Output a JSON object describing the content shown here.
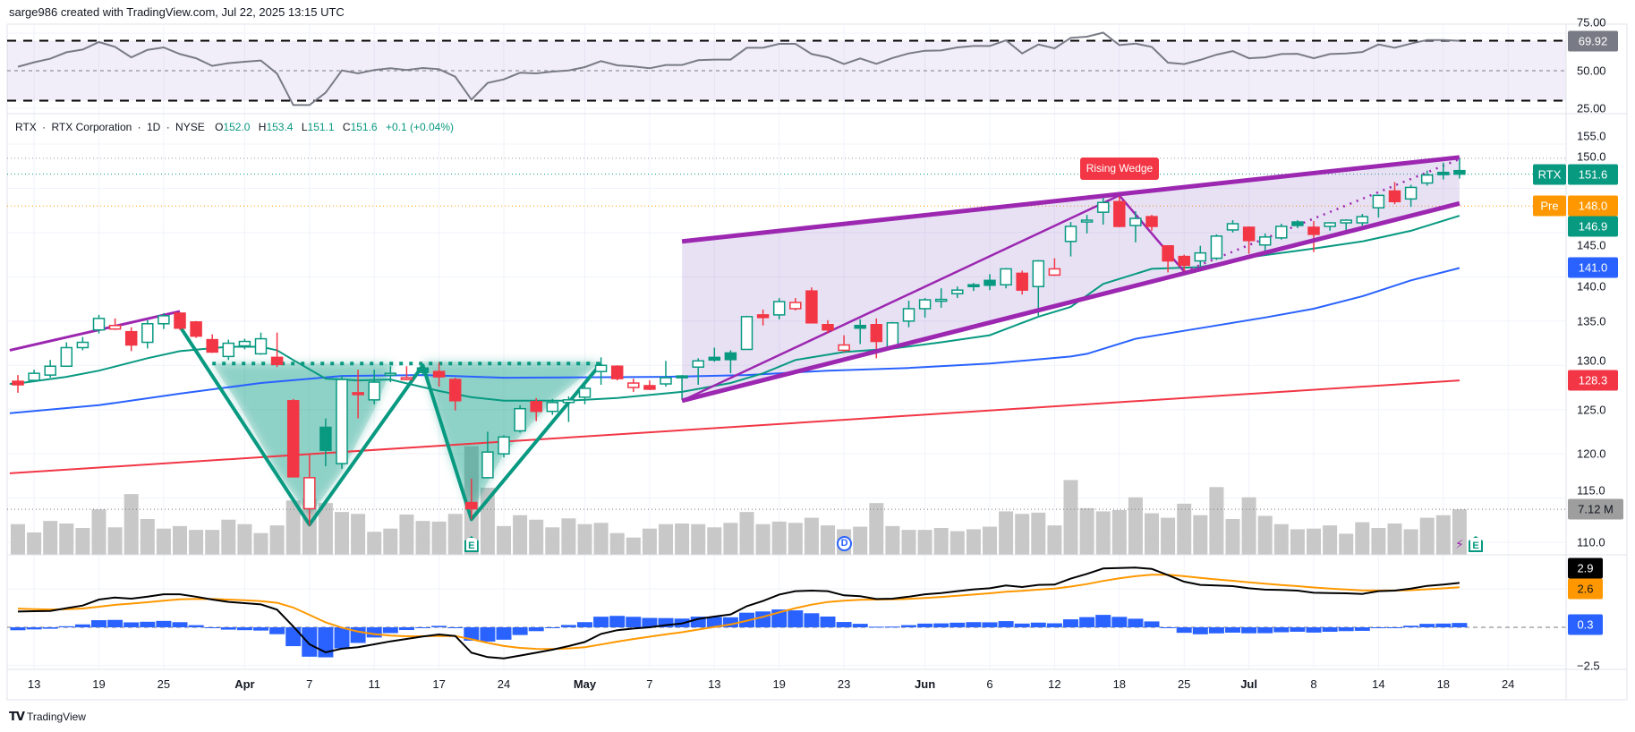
{
  "header": {
    "attribution": "sarge986 created with TradingView.com, Jul 22, 2025 13:15 UTC"
  },
  "legend": {
    "symbol": "RTX",
    "sep": "·",
    "name": "RTX Corporation",
    "interval": "1D",
    "exchange": "NYSE",
    "o_label": "O",
    "o": "152.0",
    "h_label": "H",
    "h": "153.4",
    "l_label": "L",
    "l": "151.1",
    "c_label": "C",
    "c": "151.6",
    "change": "+0.1 (+0.04%)"
  },
  "annotation": {
    "pattern_label": "Rising Wedge"
  },
  "rsi_axis": {
    "ticks": [
      {
        "value": 75,
        "label": "75.00"
      },
      {
        "value": 50,
        "label": "50.00"
      },
      {
        "value": 25,
        "label": "25.00"
      }
    ]
  },
  "price_axis": {
    "ticks": [
      {
        "value": 155,
        "label": "155.0"
      },
      {
        "value": 150,
        "label": "150.0"
      },
      {
        "value": 145,
        "label": "145.0"
      },
      {
        "value": 140,
        "label": "140.0"
      },
      {
        "value": 135,
        "label": "135.0"
      },
      {
        "value": 130,
        "label": "130.0"
      },
      {
        "value": 125,
        "label": "125.0"
      },
      {
        "value": 120,
        "label": "120.0"
      },
      {
        "value": 115,
        "label": "115.0"
      },
      {
        "value": 110,
        "label": "110.0"
      }
    ]
  },
  "macd_axis": {
    "ticks": [
      {
        "value": -2.5,
        "label": "−2.5"
      }
    ]
  },
  "tags": {
    "rsi": {
      "value": "69.92",
      "color": "#787b86"
    },
    "price": {
      "name": "RTX",
      "value": "151.6",
      "color": "#089981"
    },
    "pre": {
      "name": "Pre",
      "value": "148.0",
      "color": "#ff9800"
    },
    "ema": {
      "value": "146.9",
      "color": "#089981"
    },
    "sma50": {
      "value": "141.0",
      "color": "#2962ff"
    },
    "sma200": {
      "value": "128.3",
      "color": "#f23645"
    },
    "volume": {
      "value": "7.12 M",
      "color": "#9e9e9e"
    },
    "macd": {
      "value": "2.9",
      "color": "#000000"
    },
    "signal": {
      "value": "2.6",
      "color": "#ff9800"
    },
    "hist": {
      "value": "0.3",
      "color": "#2962ff"
    }
  },
  "time_axis": {
    "labels": [
      {
        "i": 1,
        "label": "13"
      },
      {
        "i": 5,
        "label": "19"
      },
      {
        "i": 9,
        "label": "25"
      },
      {
        "i": 14,
        "label": "Apr",
        "bold": true
      },
      {
        "i": 18,
        "label": "7"
      },
      {
        "i": 22,
        "label": "11"
      },
      {
        "i": 26,
        "label": "17"
      },
      {
        "i": 30,
        "label": "24"
      },
      {
        "i": 35,
        "label": "May",
        "bold": true
      },
      {
        "i": 39,
        "label": "7"
      },
      {
        "i": 43,
        "label": "13"
      },
      {
        "i": 47,
        "label": "19"
      },
      {
        "i": 51,
        "label": "23"
      },
      {
        "i": 56,
        "label": "Jun",
        "bold": true
      },
      {
        "i": 60,
        "label": "6"
      },
      {
        "i": 64,
        "label": "12"
      },
      {
        "i": 68,
        "label": "18"
      },
      {
        "i": 72,
        "label": "25"
      },
      {
        "i": 76,
        "label": "Jul",
        "bold": true
      },
      {
        "i": 80,
        "label": "8"
      },
      {
        "i": 84,
        "label": "14"
      },
      {
        "i": 88,
        "label": "18"
      },
      {
        "i": 92,
        "label": "24"
      }
    ]
  },
  "events": [
    {
      "i": 28,
      "label": "E",
      "kind": "earnings"
    },
    {
      "i": 51,
      "label": "D",
      "kind": "dividend"
    },
    {
      "i": 89,
      "label": "⚡",
      "kind": "flash"
    },
    {
      "i": 90,
      "label": "E",
      "kind": "earnings"
    }
  ],
  "footer": {
    "brand": "TradingView",
    "logo_mark": "TV"
  },
  "colors": {
    "up": "#089981",
    "down": "#f23645",
    "pattern": "#9c27b0",
    "sma50": "#2962ff",
    "sma200": "#f23645",
    "rsi": "#787b86",
    "macd": "#000000",
    "signal": "#ff9800",
    "hist": "#2962ff",
    "volume": "#c8c8c8"
  },
  "chart_data": {
    "type": "candlestick",
    "symbol": "RTX",
    "interval": "1D",
    "ylim": [
      108,
      157
    ],
    "ohlc": [
      [
        128.2,
        128.9,
        126.9,
        127.8
      ],
      [
        128.3,
        129.5,
        128.1,
        129.1
      ],
      [
        128.9,
        130.6,
        128.6,
        129.9
      ],
      [
        129.9,
        132.6,
        129.9,
        132.0
      ],
      [
        132.0,
        133.2,
        131.7,
        132.6
      ],
      [
        134.0,
        135.7,
        133.6,
        135.3
      ],
      [
        134.1,
        135.3,
        134.0,
        134.5
      ],
      [
        133.8,
        134.3,
        131.6,
        132.3
      ],
      [
        132.6,
        135.1,
        131.9,
        134.7
      ],
      [
        134.7,
        135.9,
        134.1,
        135.6
      ],
      [
        135.9,
        135.9,
        134.0,
        134.2
      ],
      [
        134.9,
        135.0,
        133.1,
        133.3
      ],
      [
        132.9,
        133.5,
        131.4,
        131.5
      ],
      [
        131.0,
        132.9,
        130.6,
        132.5
      ],
      [
        132.2,
        133.0,
        131.8,
        132.7
      ],
      [
        131.3,
        133.7,
        131.2,
        133.0
      ],
      [
        130.9,
        133.7,
        129.8,
        130.1
      ],
      [
        126.0,
        126.2,
        117.4,
        117.4
      ],
      [
        113.8,
        119.9,
        111.9,
        117.3
      ],
      [
        123.0,
        124.0,
        118.6,
        120.4
      ],
      [
        118.9,
        128.8,
        118.3,
        128.4
      ],
      [
        126.9,
        129.5,
        124.0,
        126.8
      ],
      [
        126.1,
        129.5,
        125.6,
        128.1
      ],
      [
        129.0,
        129.9,
        128.1,
        129.1
      ],
      [
        128.4,
        129.9,
        128.3,
        128.6
      ],
      [
        129.7,
        130.0,
        128.9,
        129.2
      ],
      [
        129.3,
        130.3,
        127.6,
        128.7
      ],
      [
        128.4,
        128.6,
        124.9,
        126.0
      ],
      [
        114.5,
        117.2,
        112.6,
        113.8
      ],
      [
        117.3,
        122.5,
        117.3,
        120.2
      ],
      [
        120.0,
        122.1,
        119.6,
        121.9
      ],
      [
        122.6,
        125.5,
        122.4,
        125.1
      ],
      [
        125.9,
        126.3,
        123.7,
        124.8
      ],
      [
        124.8,
        126.2,
        124.4,
        125.8
      ],
      [
        125.8,
        126.5,
        123.6,
        126.1
      ],
      [
        126.4,
        128.0,
        125.6,
        127.4
      ],
      [
        129.3,
        130.9,
        127.8,
        130.0
      ],
      [
        129.9,
        130.0,
        128.3,
        128.5
      ],
      [
        127.5,
        128.5,
        127.0,
        128.0
      ],
      [
        127.7,
        128.3,
        127.2,
        127.3
      ],
      [
        127.9,
        130.5,
        127.6,
        128.6
      ],
      [
        128.8,
        128.9,
        126.1,
        128.65
      ],
      [
        129.8,
        130.8,
        127.8,
        130.5
      ],
      [
        130.9,
        132.0,
        130.4,
        130.6
      ],
      [
        131.4,
        131.7,
        129.1,
        130.65
      ],
      [
        131.8,
        135.6,
        131.8,
        135.5
      ],
      [
        135.7,
        136.3,
        134.5,
        135.4
      ],
      [
        135.7,
        137.6,
        135.2,
        137.2
      ],
      [
        136.4,
        137.6,
        136.2,
        137.1
      ],
      [
        138.4,
        138.8,
        134.8,
        134.8
      ],
      [
        134.6,
        135.1,
        133.6,
        134.0
      ],
      [
        131.7,
        133.4,
        131.5,
        132.3
      ],
      [
        134.5,
        135.2,
        132.4,
        134.2
      ],
      [
        134.6,
        135.3,
        130.8,
        132.7
      ],
      [
        132.1,
        134.9,
        132.0,
        134.8
      ],
      [
        135.0,
        137.3,
        134.3,
        136.4
      ],
      [
        136.4,
        137.6,
        135.4,
        137.4
      ],
      [
        137.3,
        138.7,
        136.5,
        137.45
      ],
      [
        138.1,
        138.9,
        137.6,
        138.5
      ],
      [
        139.1,
        139.3,
        138.4,
        139.0
      ],
      [
        139.6,
        140.3,
        138.5,
        139.05
      ],
      [
        139.1,
        141.0,
        138.7,
        140.9
      ],
      [
        140.4,
        140.7,
        138.0,
        138.5
      ],
      [
        138.9,
        141.9,
        135.6,
        141.8
      ],
      [
        140.2,
        142.1,
        140.1,
        140.9
      ],
      [
        144.0,
        146.2,
        142.3,
        145.7
      ],
      [
        146.3,
        147.0,
        144.9,
        146.4
      ],
      [
        147.3,
        149.0,
        145.9,
        148.4
      ],
      [
        148.5,
        149.2,
        145.6,
        145.7
      ],
      [
        145.8,
        147.4,
        143.9,
        146.6
      ],
      [
        146.8,
        147.0,
        145.2,
        145.7
      ],
      [
        143.5,
        143.5,
        140.5,
        141.8
      ],
      [
        142.3,
        142.5,
        140.6,
        141.3
      ],
      [
        141.8,
        143.5,
        141.2,
        142.7
      ],
      [
        142.1,
        144.8,
        141.9,
        144.6
      ],
      [
        145.3,
        146.4,
        145.0,
        146.0
      ],
      [
        145.6,
        145.7,
        142.6,
        144.1
      ],
      [
        143.6,
        144.9,
        142.9,
        144.5
      ],
      [
        144.4,
        146.0,
        144.2,
        145.7
      ],
      [
        146.2,
        146.4,
        145.5,
        145.8
      ],
      [
        145.6,
        146.3,
        142.8,
        144.8
      ],
      [
        145.7,
        146.2,
        145.2,
        146.1
      ],
      [
        146.1,
        146.5,
        144.8,
        146.4
      ],
      [
        146.1,
        147.1,
        145.8,
        146.8
      ],
      [
        147.8,
        149.3,
        146.7,
        149.2
      ],
      [
        149.7,
        150.7,
        148.2,
        148.5
      ],
      [
        148.8,
        150.4,
        147.9,
        150.1
      ],
      [
        150.6,
        152.0,
        150.3,
        151.5
      ],
      [
        151.8,
        152.9,
        151.0,
        151.55
      ],
      [
        152.0,
        153.4,
        151.1,
        151.6
      ]
    ],
    "volume_millions": [
      4.8,
      3.5,
      5.3,
      4.9,
      4.2,
      7.1,
      4.3,
      9.5,
      5.6,
      4.1,
      4.5,
      3.9,
      3.9,
      5.5,
      4.8,
      3.4,
      4.6,
      8.5,
      8.8,
      8.1,
      6.7,
      6.4,
      3.6,
      4.1,
      6.3,
      5.3,
      5.2,
      6.4,
      17.0,
      10.5,
      4.5,
      6.2,
      5.5,
      4.3,
      5.7,
      4.8,
      5.0,
      3.4,
      2.7,
      4.1,
      4.8,
      4.9,
      4.8,
      4.3,
      5.0,
      6.7,
      4.8,
      5.2,
      5.0,
      5.8,
      4.6,
      4.0,
      4.4,
      8.1,
      4.5,
      3.9,
      3.9,
      4.2,
      3.7,
      4.0,
      4.4,
      6.8,
      6.4,
      6.6,
      4.6,
      11.7,
      7.3,
      6.8,
      7.0,
      9.0,
      6.5,
      5.8,
      8.0,
      6.2,
      10.6,
      5.6,
      9.0,
      6.1,
      4.8,
      4.0,
      4.1,
      4.6,
      3.3,
      5.1,
      4.2,
      4.9,
      4.0,
      5.8,
      6.2,
      7.12
    ],
    "price_lines": {
      "high": 153.4,
      "last": 151.6,
      "pre": 148.0,
      "volume_ref": 7.12
    },
    "ema20": [
      [
        -0.5,
        127.9
      ],
      [
        0,
        127.95
      ],
      [
        3,
        128.7
      ],
      [
        5,
        129.4
      ],
      [
        8,
        130.8
      ],
      [
        10,
        131.6
      ],
      [
        13,
        132.1
      ],
      [
        15,
        132.1
      ],
      [
        16,
        131.7
      ],
      [
        17,
        130.6
      ],
      [
        19,
        128.5
      ],
      [
        21,
        128.3
      ],
      [
        23,
        128.4
      ],
      [
        26,
        127.1
      ],
      [
        28,
        126.4
      ],
      [
        30,
        126.0
      ],
      [
        34,
        126.0
      ],
      [
        37,
        126.3
      ],
      [
        41,
        127.0
      ],
      [
        44,
        128.0
      ],
      [
        46,
        129.1
      ],
      [
        48,
        130.6
      ],
      [
        51,
        131.5
      ],
      [
        54,
        131.9
      ],
      [
        57,
        132.6
      ],
      [
        60,
        133.4
      ],
      [
        63,
        135.5
      ],
      [
        65,
        136.6
      ],
      [
        67,
        139.2
      ],
      [
        70,
        140.9
      ],
      [
        73,
        141.1
      ],
      [
        76,
        142.2
      ],
      [
        80,
        143.2
      ],
      [
        83,
        144.0
      ],
      [
        86,
        145.2
      ],
      [
        89,
        146.9
      ]
    ],
    "sma50": [
      [
        -0.5,
        124.6
      ],
      [
        5,
        125.5
      ],
      [
        10,
        126.8
      ],
      [
        15,
        128.0
      ],
      [
        20,
        128.8
      ],
      [
        25,
        128.9
      ],
      [
        30,
        128.6
      ],
      [
        40,
        128.7
      ],
      [
        45,
        128.9
      ],
      [
        50,
        129.4
      ],
      [
        55,
        129.7
      ],
      [
        60,
        130.2
      ],
      [
        65,
        131.0
      ],
      [
        66,
        131.3
      ],
      [
        69,
        133.0
      ],
      [
        73,
        134.2
      ],
      [
        77,
        135.4
      ],
      [
        80,
        136.4
      ],
      [
        83,
        137.8
      ],
      [
        86,
        139.6
      ],
      [
        89,
        141.0
      ]
    ],
    "sma200": [
      [
        -0.5,
        117.8
      ],
      [
        89,
        128.3
      ]
    ],
    "rsi": [
      52.6,
      55.6,
      58,
      62.3,
      64.1,
      69.1,
      65.9,
      58.9,
      63.9,
      65.5,
      61.1,
      58.3,
      53.2,
      55,
      56,
      56.8,
      48,
      27.1,
      27.1,
      35.3,
      50.2,
      48.2,
      50.4,
      51.6,
      50.4,
      51.8,
      51,
      46,
      30.7,
      41.8,
      44.2,
      48.6,
      48.2,
      49.4,
      50.2,
      52.4,
      56.4,
      53.6,
      52.8,
      51.6,
      53.8,
      53.8,
      57,
      57.4,
      57.4,
      65.3,
      65.3,
      67.9,
      67.9,
      61.1,
      58.9,
      54.4,
      58.2,
      54.6,
      58.5,
      61.5,
      63.3,
      63.5,
      65.5,
      66.5,
      66.5,
      70.3,
      61.5,
      67.5,
      64.9,
      71.9,
      72.7,
      75.4,
      67.1,
      68.1,
      65.9,
      55.4,
      54.4,
      57.2,
      60.7,
      63.1,
      58.3,
      58.9,
      61.1,
      61.3,
      58.3,
      61.1,
      61.5,
      62.5,
      67.5,
      65.3,
      68.1,
      70.5,
      70.5,
      69.92
    ],
    "rsi_bands": {
      "upper": 70,
      "middle": 50,
      "lower": 30
    },
    "macd": [
      1.03,
      1.05,
      1.07,
      1.25,
      1.42,
      1.81,
      1.95,
      1.87,
      2.0,
      2.16,
      2.16,
      2.0,
      1.81,
      1.66,
      1.58,
      1.5,
      1.15,
      0.06,
      -1.11,
      -1.64,
      -1.4,
      -1.3,
      -1.11,
      -0.92,
      -0.76,
      -0.6,
      -0.47,
      -0.57,
      -1.66,
      -1.95,
      -2.03,
      -1.85,
      -1.66,
      -1.46,
      -1.23,
      -0.96,
      -0.43,
      -0.19,
      -0.08,
      0,
      0.14,
      0.25,
      0.55,
      0.7,
      0.84,
      1.38,
      1.72,
      2.14,
      2.36,
      2.4,
      2.36,
      2.09,
      2.03,
      1.85,
      1.87,
      2.0,
      2.16,
      2.24,
      2.36,
      2.48,
      2.55,
      2.73,
      2.63,
      2.77,
      2.79,
      3.18,
      3.49,
      3.84,
      3.88,
      3.9,
      3.82,
      3.41,
      2.98,
      2.77,
      2.73,
      2.69,
      2.55,
      2.46,
      2.44,
      2.4,
      2.26,
      2.24,
      2.22,
      2.18,
      2.36,
      2.4,
      2.53,
      2.71,
      2.79,
      2.9
    ],
    "macd_signal_seed": 1.27,
    "drawings": {
      "left_trendline": [
        [
          -0.5,
          131.7
        ],
        [
          10,
          136.1
        ]
      ],
      "wedge_upper": [
        [
          41,
          144.0
        ],
        [
          89,
          153.5
        ]
      ],
      "wedge_lower": [
        [
          41,
          126.0
        ],
        [
          89,
          148.3
        ]
      ],
      "wedge_path": [
        [
          41,
          126.0
        ],
        [
          68,
          149.2
        ],
        [
          72,
          140.6
        ]
      ],
      "wedge_projection": [
        [
          72,
          140.6
        ],
        [
          89,
          153.3
        ]
      ],
      "double_bottom": [
        [
          10,
          134.4
        ],
        [
          18,
          112.0
        ],
        [
          25,
          130.0
        ],
        [
          28,
          112.6
        ],
        [
          36,
          130.2
        ]
      ],
      "neckline": [
        [
          12,
          130.2
        ],
        [
          36,
          130.2
        ]
      ]
    }
  }
}
